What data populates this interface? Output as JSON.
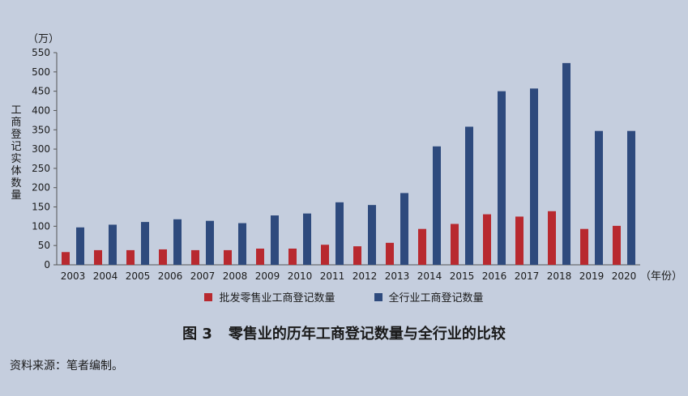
{
  "chart_data": {
    "type": "bar",
    "categories": [
      "2003",
      "2004",
      "2005",
      "2006",
      "2007",
      "2008",
      "2009",
      "2010",
      "2011",
      "2012",
      "2013",
      "2014",
      "2015",
      "2016",
      "2017",
      "2018",
      "2019",
      "2020"
    ],
    "series": [
      {
        "name": "批发零售业工商登记数量",
        "color": "#b8292f",
        "values": [
          33,
          38,
          38,
          40,
          38,
          38,
          42,
          42,
          52,
          48,
          57,
          93,
          106,
          131,
          125,
          139,
          93,
          101
        ]
      },
      {
        "name": "全行业工商登记数量",
        "color": "#2e4a7d",
        "values": [
          97,
          104,
          111,
          118,
          114,
          108,
          128,
          133,
          162,
          155,
          186,
          307,
          358,
          450,
          457,
          523,
          347,
          347
        ]
      }
    ],
    "ylabel": "工商登记实体数量",
    "yunit": "（万）",
    "xunit": "（年份）",
    "ylim": [
      0,
      550
    ],
    "yticks": [
      0,
      50,
      100,
      150,
      200,
      250,
      300,
      350,
      400,
      450,
      500,
      550
    ],
    "legend_position": "bottom"
  },
  "caption": {
    "number": "图 3",
    "title": "零售业的历年工商登记数量与全行业的比较"
  },
  "source": "资料来源：笔者编制。"
}
